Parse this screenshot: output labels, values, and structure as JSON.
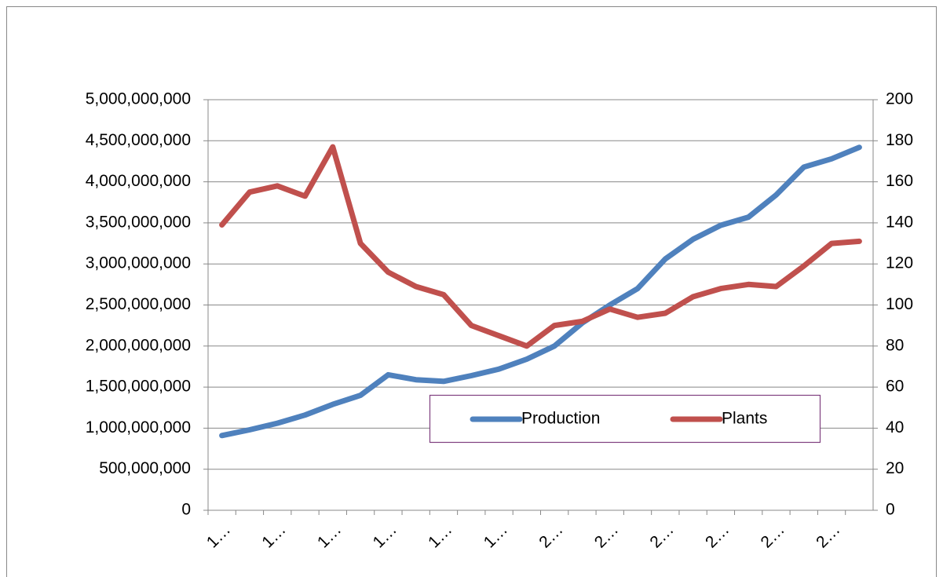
{
  "chart_data": {
    "type": "line",
    "categories": [
      "1…",
      null,
      "1…",
      null,
      "1…",
      null,
      "1…",
      null,
      "1…",
      null,
      "1…",
      null,
      "2…",
      null,
      "2…",
      null,
      "2…",
      null,
      "2…",
      null,
      "2…",
      null,
      "2…",
      null
    ],
    "series": [
      {
        "name": "Production",
        "color": "#4f81bd",
        "values": [
          910000000,
          980000000,
          1060000000,
          1160000000,
          1290000000,
          1400000000,
          1650000000,
          1590000000,
          1570000000,
          1640000000,
          1720000000,
          1840000000,
          2000000000,
          2280000000,
          2500000000,
          2700000000,
          3060000000,
          3300000000,
          3470000000,
          3570000000,
          3840000000,
          4180000000,
          4280000000,
          4420000000
        ]
      },
      {
        "name": "Plants",
        "color": "#c0504d",
        "axis": "y2",
        "values": [
          139,
          155,
          158,
          153,
          177,
          130,
          116,
          109,
          105,
          90,
          85,
          80,
          90,
          92,
          98,
          94,
          96,
          104,
          108,
          110,
          109,
          119,
          130,
          131
        ]
      }
    ],
    "ylim": [
      0,
      5000000000
    ],
    "yticks": [
      0,
      {
        "value": 500000000,
        "label": "500,000,000"
      },
      {
        "value": 1000000000,
        "label": "1,000,000,000"
      },
      {
        "value": 1500000000,
        "label": "1,500,000,000"
      },
      {
        "value": 2000000000,
        "label": "2,000,000,000"
      },
      {
        "value": 2500000000,
        "label": "2,500,000,000"
      },
      {
        "value": 3000000000,
        "label": "3,000,000,000"
      },
      {
        "value": 3500000000,
        "label": "3,500,000,000"
      },
      {
        "value": 4000000000,
        "label": "4,000,000,000"
      },
      {
        "value": 4500000000,
        "label": "4,500,000,000"
      },
      {
        "value": 5000000000,
        "label": "5,000,000,000"
      }
    ],
    "y2lim": [
      0,
      200
    ],
    "y2ticks": [
      0,
      20,
      40,
      60,
      80,
      100,
      120,
      140,
      160,
      180,
      200
    ],
    "grid": true,
    "legend": "lower right"
  }
}
